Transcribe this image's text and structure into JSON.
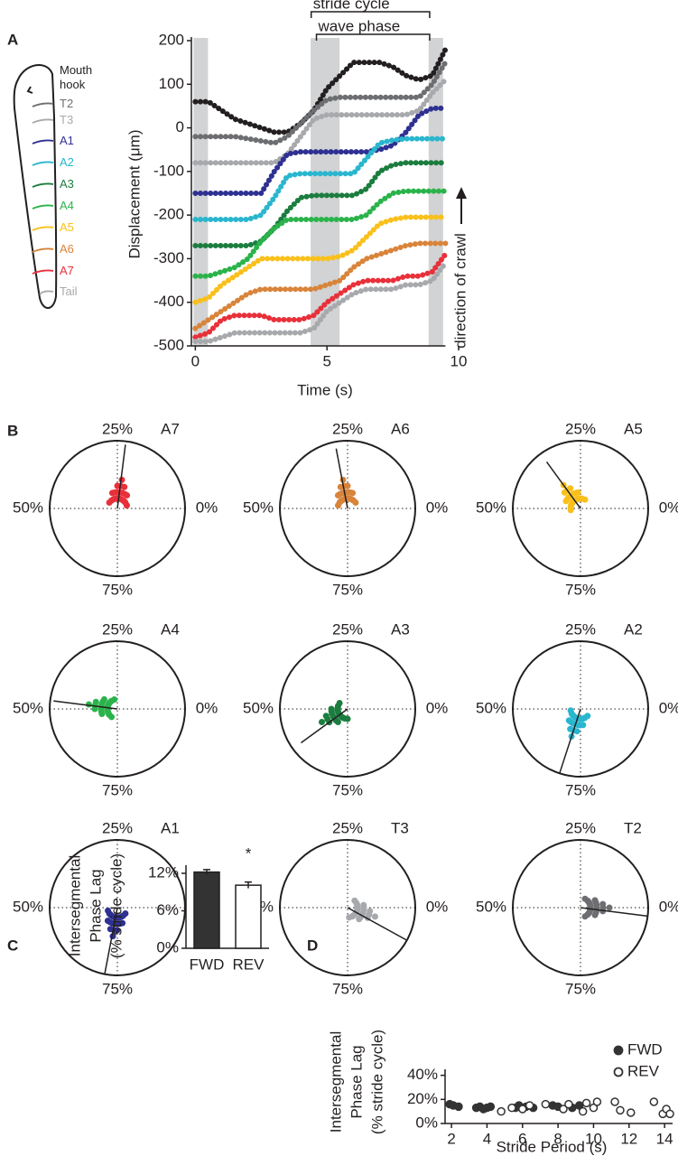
{
  "chart_data": [
    {
      "type": "scatter",
      "panel": "A",
      "ylabel": "Displacement (μm)",
      "xlabel": "Time (s)",
      "xlim": [
        -0.15,
        10
      ],
      "ylim": [
        -500,
        200
      ],
      "xticks": [
        0,
        5,
        10
      ],
      "yticks": [
        -500,
        -400,
        -300,
        -200,
        -100,
        0,
        100,
        200
      ],
      "shaded_spans": [
        [
          -0.07,
          0.48
        ],
        [
          4.38,
          5.48
        ],
        [
          8.86,
          9.41
        ]
      ],
      "stride_cycle": {
        "label": "stride cycle",
        "span": [
          4.4,
          8.9
        ]
      },
      "wave_phase": {
        "label": "wave phase",
        "span": [
          4.6,
          8.9
        ]
      },
      "direction_label": "direction of crawl",
      "x": [
        0,
        0.5,
        1,
        1.5,
        2,
        2.5,
        3,
        3.5,
        4,
        4.5,
        5,
        5.5,
        6,
        6.5,
        7,
        7.5,
        8,
        8.5,
        9,
        9.5
      ],
      "series": [
        {
          "name": "Mouth hook",
          "color": "#231f20",
          "values": [
            60,
            60,
            40,
            20,
            10,
            0,
            -10,
            -10,
            10,
            40,
            90,
            120,
            150,
            150,
            150,
            140,
            120,
            110,
            120,
            180
          ]
        },
        {
          "name": "T2",
          "color": "#6d6e71",
          "values": [
            -20,
            -20,
            -20,
            -20,
            -25,
            -30,
            -35,
            -20,
            10,
            40,
            65,
            70,
            70,
            70,
            70,
            70,
            70,
            70,
            100,
            150
          ]
        },
        {
          "name": "T3",
          "color": "#a7a9ac",
          "values": [
            -80,
            -80,
            -80,
            -80,
            -80,
            -80,
            -80,
            -60,
            -20,
            20,
            30,
            30,
            30,
            30,
            30,
            30,
            30,
            40,
            80,
            110
          ]
        },
        {
          "name": "A1",
          "color": "#2e3192",
          "values": [
            -150,
            -150,
            -150,
            -150,
            -150,
            -150,
            -100,
            -60,
            -55,
            -55,
            -55,
            -55,
            -55,
            -55,
            -50,
            -40,
            -10,
            30,
            45,
            45
          ]
        },
        {
          "name": "A2",
          "color": "#29b6ce",
          "values": [
            -210,
            -210,
            -210,
            -210,
            -210,
            -200,
            -160,
            -110,
            -105,
            -105,
            -105,
            -105,
            -105,
            -70,
            -35,
            -28,
            -25,
            -25,
            -25,
            -25
          ]
        },
        {
          "name": "A3",
          "color": "#1b7d3f",
          "values": [
            -270,
            -270,
            -270,
            -270,
            -270,
            -260,
            -230,
            -190,
            -160,
            -155,
            -155,
            -155,
            -155,
            -140,
            -100,
            -85,
            -80,
            -80,
            -80,
            -80
          ]
        },
        {
          "name": "A4",
          "color": "#2bb34b",
          "values": [
            -340,
            -340,
            -330,
            -320,
            -300,
            -260,
            -230,
            -210,
            -210,
            -210,
            -210,
            -210,
            -210,
            -200,
            -170,
            -150,
            -145,
            -145,
            -145,
            -145
          ]
        },
        {
          "name": "A5",
          "color": "#f9c01b",
          "values": [
            -400,
            -390,
            -360,
            -340,
            -320,
            -300,
            -300,
            -300,
            -300,
            -300,
            -300,
            -295,
            -280,
            -250,
            -220,
            -210,
            -205,
            -205,
            -205,
            -205
          ]
        },
        {
          "name": "A6",
          "color": "#d8843a",
          "values": [
            -460,
            -440,
            -420,
            -400,
            -380,
            -370,
            -370,
            -370,
            -370,
            -370,
            -360,
            -350,
            -320,
            -300,
            -290,
            -280,
            -270,
            -265,
            -265,
            -265
          ]
        },
        {
          "name": "A7",
          "color": "#e8303a",
          "values": [
            -480,
            -470,
            -440,
            -430,
            -430,
            -430,
            -440,
            -440,
            -440,
            -430,
            -400,
            -380,
            -360,
            -350,
            -350,
            -350,
            -340,
            -340,
            -330,
            -290
          ]
        },
        {
          "name": "Tail",
          "color": "#a7a9ac",
          "values": [
            -490,
            -490,
            -480,
            -470,
            -470,
            -470,
            -470,
            -470,
            -470,
            -460,
            -420,
            -400,
            -380,
            -370,
            -370,
            -370,
            -360,
            -360,
            -350,
            -310
          ]
        }
      ]
    },
    {
      "type": "polar",
      "panel": "B",
      "angle_ticks": [
        {
          "value": 0,
          "label": "0%"
        },
        {
          "value": 25,
          "label": "25%"
        },
        {
          "value": 50,
          "label": "50%"
        },
        {
          "value": 75,
          "label": "75%"
        }
      ],
      "plots": [
        {
          "name": "A7",
          "color": "#e8303a",
          "mean_phase": 23,
          "mean_length": 0.95,
          "phases": [
            10,
            12.5,
            15,
            15,
            17.5,
            17.5,
            20,
            20,
            20,
            22.5,
            22.5,
            22.5,
            22.5,
            25,
            25,
            25,
            27.5,
            27.5,
            30,
            30,
            32.5,
            35,
            5,
            40
          ]
        },
        {
          "name": "A6",
          "color": "#d8843a",
          "mean_phase": 28,
          "mean_length": 0.9,
          "phases": [
            15,
            17.5,
            20,
            20,
            22.5,
            22.5,
            25,
            25,
            25,
            27.5,
            27.5,
            27.5,
            27.5,
            30,
            30,
            30,
            32.5,
            32.5,
            35,
            35,
            37.5,
            40,
            10,
            45
          ]
        },
        {
          "name": "A5",
          "color": "#f9c01b",
          "mean_phase": 35,
          "mean_length": 0.85,
          "phases": [
            22.5,
            25,
            27.5,
            27.5,
            30,
            30,
            32.5,
            32.5,
            32.5,
            35,
            35,
            35,
            35,
            37.5,
            37.5,
            37.5,
            40,
            40,
            42.5,
            42.5,
            45,
            47.5,
            17.5,
            52.5
          ]
        },
        {
          "name": "A4",
          "color": "#2bb34b",
          "mean_phase": 48,
          "mean_length": 0.95,
          "phases": [
            35,
            37.5,
            40,
            40,
            42.5,
            42.5,
            45,
            45,
            45,
            47.5,
            47.5,
            47.5,
            47.5,
            50,
            50,
            50,
            52.5,
            52.5,
            55,
            55,
            57.5,
            60,
            30,
            65
          ]
        },
        {
          "name": "A3",
          "color": "#1b7d3f",
          "mean_phase": 60,
          "mean_length": 0.85,
          "phases": [
            45,
            47.5,
            50,
            50,
            52.5,
            52.5,
            55,
            55,
            55,
            57.5,
            57.5,
            57.5,
            57.5,
            60,
            60,
            60,
            62.5,
            62.5,
            65,
            65,
            67.5,
            70,
            40,
            75
          ]
        },
        {
          "name": "A2",
          "color": "#29b6ce",
          "mean_phase": 70,
          "mean_length": 1.0,
          "phases": [
            57.5,
            60,
            62.5,
            62.5,
            65,
            65,
            67.5,
            67.5,
            67.5,
            70,
            70,
            70,
            70,
            72.5,
            72.5,
            72.5,
            75,
            75,
            77.5,
            77.5,
            80,
            82.5,
            52.5,
            87.5
          ]
        },
        {
          "name": "A1",
          "color": "#2e3192",
          "mean_phase": 72,
          "mean_length": 1.0,
          "phases": [
            60,
            62.5,
            65,
            65,
            67.5,
            67.5,
            70,
            70,
            70,
            72.5,
            72.5,
            72.5,
            72.5,
            75,
            75,
            75,
            77.5,
            77.5,
            80,
            80,
            82.5,
            85,
            55,
            90
          ]
        },
        {
          "name": "T3",
          "color": "#a7a9ac",
          "mean_phase": 92,
          "mean_length": 1.0,
          "phases": [
            82.5,
            85,
            87.5,
            87.5,
            90,
            90,
            92.5,
            92.5,
            92.5,
            95,
            95,
            95,
            95,
            97.5,
            97.5,
            97.5,
            0,
            0,
            2.5,
            2.5,
            5,
            7.5,
            77.5,
            12.5
          ]
        },
        {
          "name": "T2",
          "color": "#6d6e71",
          "mean_phase": 98,
          "mean_length": 1.0,
          "phases": [
            87.5,
            90,
            92.5,
            92.5,
            95,
            95,
            97.5,
            97.5,
            97.5,
            0,
            0,
            0,
            0,
            2.5,
            2.5,
            2.5,
            5,
            5,
            7.5,
            7.5,
            10,
            12.5,
            82.5,
            17.5
          ]
        }
      ]
    },
    {
      "type": "bar",
      "panel": "C",
      "ylabel": [
        "Intersegmental",
        "Phase Lag",
        "(% stride cycle)"
      ],
      "categories": [
        "FWD",
        "REV"
      ],
      "values": [
        12.2,
        10.1
      ],
      "errors": [
        0.4,
        0.5
      ],
      "colors": [
        "#333333",
        "#ffffff"
      ],
      "ylim": [
        0,
        13.3
      ],
      "yticks": [
        {
          "value": 0,
          "label": "0%"
        },
        {
          "value": 6,
          "label": "6%"
        },
        {
          "value": 12,
          "label": "12%"
        }
      ],
      "annotations": [
        "*"
      ]
    },
    {
      "type": "scatter",
      "panel": "D",
      "ylabel": [
        "Intersegmental",
        "Phase Lag",
        "(% stride cycle)"
      ],
      "xlabel": "Stride Period (s)",
      "xlim": [
        1.64,
        14.45
      ],
      "ylim": [
        0,
        42
      ],
      "xticks": [
        2,
        4,
        6,
        8,
        10,
        12,
        14
      ],
      "yticks": [
        {
          "value": 0,
          "label": "0%"
        },
        {
          "value": 20,
          "label": "20%"
        },
        {
          "value": 40,
          "label": "40%"
        }
      ],
      "legend": "upper right",
      "series": [
        {
          "name": "FWD",
          "color": "#333333",
          "marker": "filled",
          "x": [
            1.9,
            2.1,
            2.4,
            3.4,
            3.6,
            3.8,
            4.0,
            4.2,
            5.6,
            5.8,
            6.2,
            6.6,
            7.7,
            8.0,
            8.8,
            9.2
          ],
          "values": [
            16,
            15,
            14,
            13,
            14,
            12,
            13,
            14,
            13,
            15,
            14,
            13,
            15,
            14,
            13,
            15
          ]
        },
        {
          "name": "REV",
          "color": "#333333",
          "marker": "open",
          "x": [
            4.8,
            5.4,
            6.0,
            6.4,
            7.3,
            8.3,
            8.6,
            9.4,
            9.6,
            10.0,
            10.2,
            11.2,
            11.5,
            12.1,
            13.4,
            13.9,
            14.1,
            14.3
          ],
          "values": [
            10,
            13,
            12,
            15,
            16,
            12,
            16,
            10,
            17,
            13,
            18,
            18,
            11,
            9,
            18,
            8,
            12,
            8
          ]
        }
      ]
    }
  ]
}
